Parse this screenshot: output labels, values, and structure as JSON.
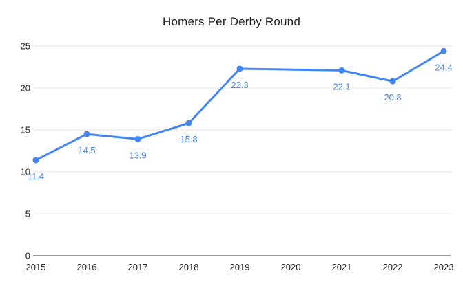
{
  "chart": {
    "title": "Homers Per Derby Round"
  },
  "chart_data": {
    "type": "line",
    "title": "Homers Per Derby Round",
    "categories": [
      "2015",
      "2016",
      "2017",
      "2018",
      "2019",
      "2020",
      "2021",
      "2022",
      "2023"
    ],
    "values": [
      11.4,
      14.5,
      13.9,
      15.8,
      22.3,
      null,
      22.1,
      20.8,
      24.4
    ],
    "data_labels": [
      "11.4",
      "14.5",
      "13.9",
      "15.8",
      "22.3",
      null,
      "22.1",
      "20.8",
      "24.4"
    ],
    "xlabel": "",
    "ylabel": "",
    "ylim": [
      0,
      25
    ],
    "y_ticks": [
      0,
      5,
      10,
      15,
      20,
      25
    ],
    "grid": "horizontal-only",
    "legend": "none",
    "gap_behavior": "2020 value missing; line interpolated across gap with no marker or data label",
    "colors": {
      "line": "#4285F4",
      "marker": "#4285F4",
      "data_label": "#4285F4",
      "gridline": "#E6E6E6",
      "axis_baseline": "#333333",
      "tick_label": "#222222",
      "title": "#212121",
      "background": "#FFFFFF"
    }
  }
}
